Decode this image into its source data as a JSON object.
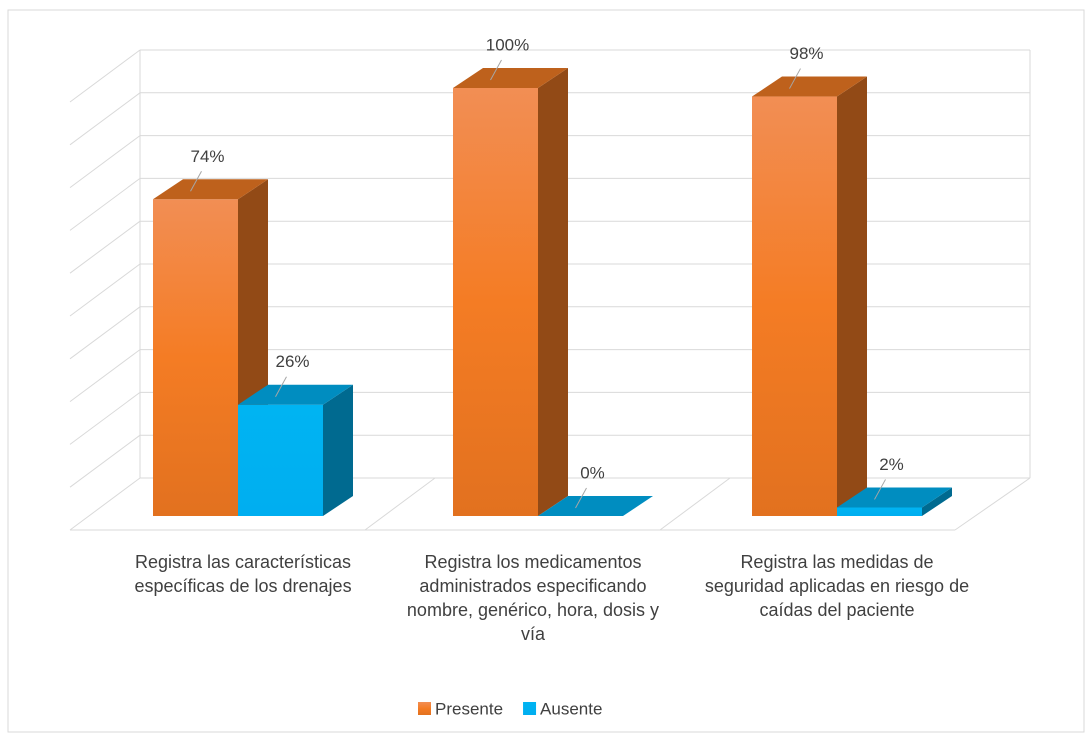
{
  "chart_data": {
    "type": "bar3d",
    "categories": [
      "Registra las características específicas de los drenajes",
      "Registra los medicamentos administrados especificando nombre, genérico, hora, dosis y vía",
      "Registra las medidas de seguridad aplicadas en riesgo de caídas del paciente"
    ],
    "series": [
      {
        "name": "Presente",
        "color": "#f47c24",
        "values": [
          74,
          100,
          98
        ],
        "value_labels": [
          "74%",
          "100%",
          "98%"
        ]
      },
      {
        "name": "Ausente",
        "color": "#00b0f0",
        "values": [
          26,
          0,
          2
        ],
        "value_labels": [
          "26%",
          "0%",
          "2%"
        ]
      }
    ],
    "ylim": [
      0,
      100
    ],
    "yticks": [
      0,
      10,
      20,
      30,
      40,
      50,
      60,
      70,
      80,
      90,
      100
    ],
    "grid": true,
    "legend": "bottom"
  }
}
